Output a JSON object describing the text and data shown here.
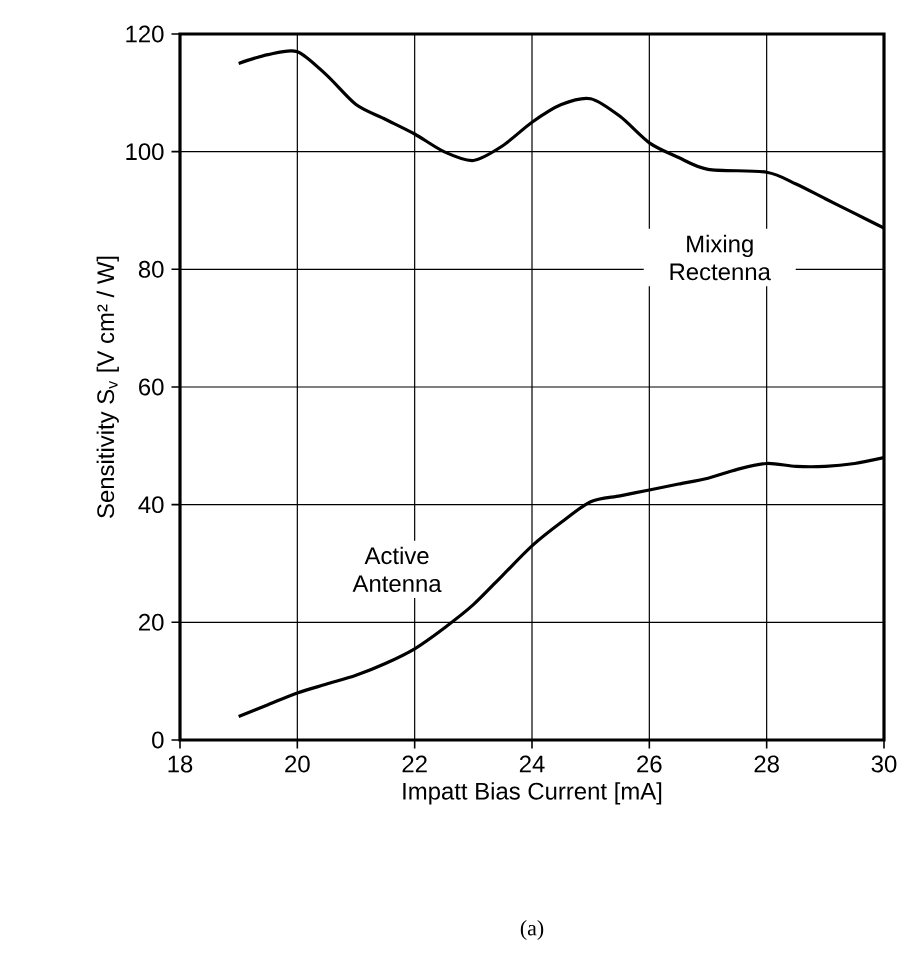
{
  "chart_data": {
    "type": "line",
    "xlabel": "Impatt Bias Current [mA]",
    "ylabel": "Sensitivity S$_{v}$ [V cm² / W]",
    "annotations": [
      "(a)"
    ],
    "xlim": [
      18,
      30
    ],
    "xticks": [
      18,
      20,
      22,
      24,
      26,
      28,
      30
    ],
    "ylim": [
      0,
      120
    ],
    "yticks": [
      0,
      20,
      40,
      60,
      80,
      100,
      120
    ],
    "grid": true,
    "legend": false,
    "marker": "none",
    "line_style": "solid",
    "series": [
      {
        "name": "Mixing Rectenna",
        "color": "#000000",
        "x": [
          19,
          19.5,
          20,
          20.5,
          21,
          21.5,
          22,
          22.5,
          23,
          23.5,
          24,
          24.5,
          25,
          25.5,
          26,
          26.5,
          27,
          28,
          28.5,
          29,
          29.5,
          30
        ],
        "values": [
          115,
          116.5,
          117,
          113,
          108,
          105.5,
          103,
          100,
          98.5,
          101,
          105,
          108,
          109,
          106,
          101.5,
          99,
          97,
          96.5,
          94.5,
          92,
          89.5,
          87
        ]
      },
      {
        "name": "Active Antenna",
        "color": "#000000",
        "x": [
          19,
          19.5,
          20,
          20.5,
          21,
          21.5,
          22,
          22.5,
          23,
          23.5,
          24,
          24.5,
          25,
          25.5,
          26,
          26.5,
          27,
          27.5,
          28,
          28.5,
          29,
          29.5,
          30
        ],
        "values": [
          4,
          6,
          8,
          9.5,
          11,
          13,
          15.5,
          19,
          23,
          28,
          33,
          37,
          40.5,
          41.5,
          42.5,
          43.5,
          44.5,
          46,
          47,
          46.5,
          46.5,
          47,
          48
        ]
      }
    ]
  }
}
